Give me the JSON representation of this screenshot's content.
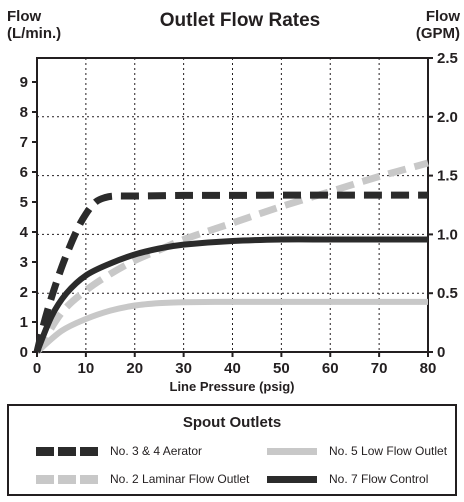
{
  "chart_data": {
    "type": "line",
    "title": "Outlet Flow Rates",
    "left_axis": {
      "label_line1": "Flow",
      "label_line2": "(L/min.)",
      "ticks": [
        "0",
        "1",
        "2",
        "3",
        "4",
        "5",
        "6",
        "7",
        "8",
        "9"
      ],
      "range": [
        0,
        9.8
      ]
    },
    "right_axis": {
      "label_line1": "Flow",
      "label_line2": "(GPM)",
      "ticks": [
        "0",
        "0.5",
        "1.0",
        "1.5",
        "2.0",
        "2.5"
      ],
      "range": [
        0,
        2.5
      ]
    },
    "xlabel": "Line Pressure (psig)",
    "xticks": [
      "0",
      "10",
      "20",
      "30",
      "40",
      "50",
      "60",
      "70",
      "80"
    ],
    "xlim": [
      0,
      80
    ],
    "grid": true,
    "series": [
      {
        "name": "No. 3 & 4 Aerator",
        "color": "#2b2b2b",
        "style": "dashed",
        "x": [
          0,
          2,
          5,
          8,
          10,
          12,
          14,
          16,
          20,
          30,
          40,
          50,
          60,
          70,
          80
        ],
        "y": [
          0,
          1.3,
          2.8,
          4.0,
          4.6,
          5.0,
          5.15,
          5.2,
          5.2,
          5.22,
          5.22,
          5.23,
          5.23,
          5.23,
          5.23
        ]
      },
      {
        "name": "No. 2 Laminar Flow Outlet",
        "color": "#c8c8c8",
        "style": "dashed",
        "x": [
          0,
          5,
          10,
          15,
          20,
          25,
          30,
          40,
          50,
          60,
          70,
          80
        ],
        "y": [
          0,
          1.3,
          2.05,
          2.6,
          3.05,
          3.4,
          3.75,
          4.3,
          4.85,
          5.35,
          5.85,
          6.3
        ]
      },
      {
        "name": "No. 5 Low Flow Outlet",
        "color": "#c8c8c8",
        "style": "solid",
        "x": [
          0,
          5,
          10,
          15,
          20,
          25,
          30,
          40,
          50,
          60,
          70,
          80
        ],
        "y": [
          0,
          0.7,
          1.1,
          1.38,
          1.55,
          1.63,
          1.66,
          1.67,
          1.67,
          1.67,
          1.67,
          1.67
        ]
      },
      {
        "name": "No. 7 Flow Control",
        "color": "#2b2b2b",
        "style": "solid",
        "x": [
          0,
          3,
          6,
          10,
          15,
          20,
          25,
          30,
          40,
          50,
          60,
          70,
          80
        ],
        "y": [
          0,
          1.2,
          1.95,
          2.55,
          2.95,
          3.25,
          3.45,
          3.58,
          3.7,
          3.75,
          3.75,
          3.75,
          3.75
        ]
      }
    ],
    "legend": {
      "title": "Spout Outlets",
      "items": [
        "No. 3 & 4 Aerator",
        "No. 5 Low Flow Outlet",
        "No. 2 Laminar Flow Outlet",
        "No. 7 Flow Control"
      ]
    }
  }
}
